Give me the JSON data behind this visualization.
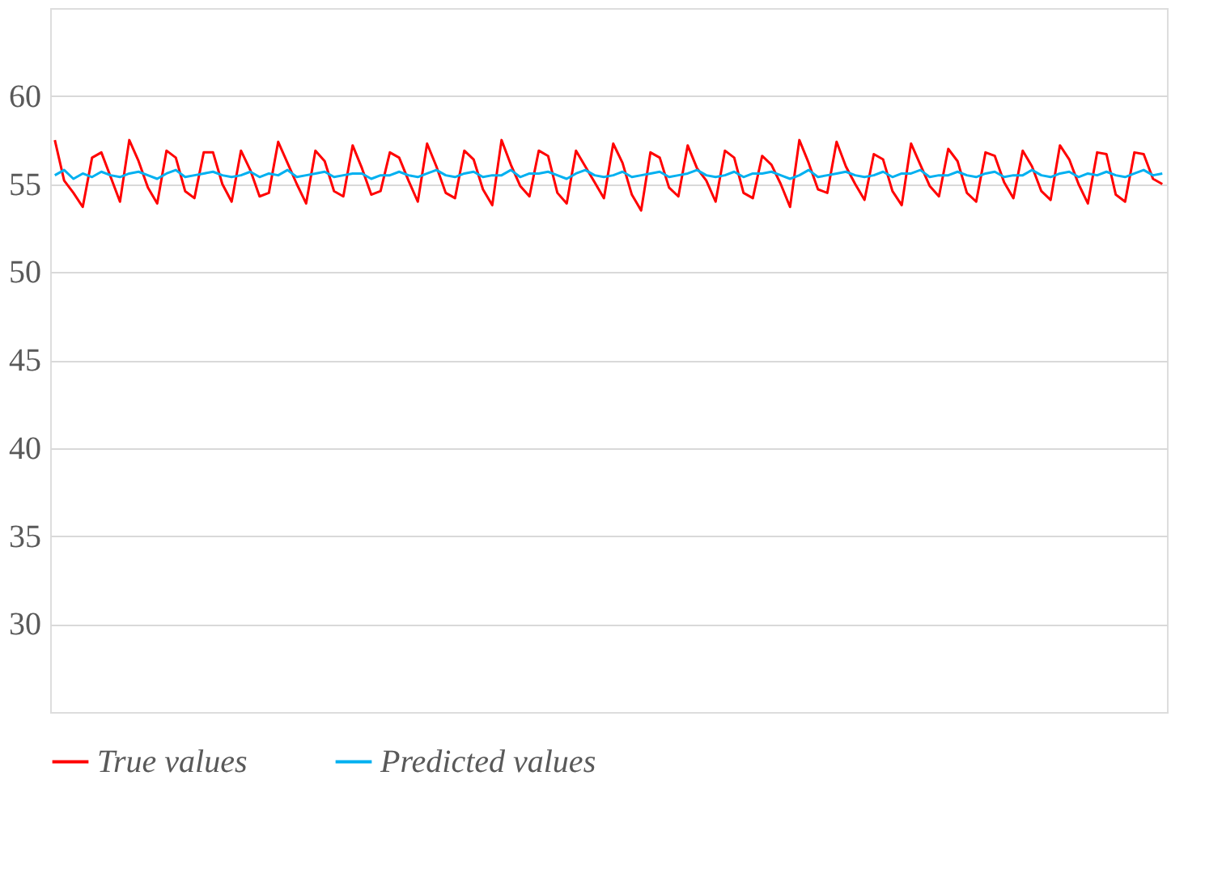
{
  "chart_data": {
    "type": "line",
    "categories": [
      null,
      null,
      null,
      null,
      null,
      null,
      null,
      null,
      null,
      null,
      null,
      null,
      null,
      null,
      null,
      null,
      null,
      null,
      null,
      null,
      null,
      null,
      null,
      null,
      null,
      null,
      null,
      null,
      null,
      null,
      null,
      null,
      null,
      null,
      null,
      null,
      null,
      null,
      null,
      null,
      null,
      null,
      null,
      null,
      null,
      null,
      null,
      null,
      null,
      null,
      null,
      null,
      null,
      null,
      null,
      null,
      null,
      null,
      null,
      null,
      null,
      null,
      null,
      null,
      null,
      null,
      null,
      null,
      null,
      null,
      null,
      null,
      null,
      null,
      null,
      null,
      null,
      null,
      null,
      null,
      null,
      null,
      null,
      null,
      null,
      null,
      null,
      null,
      null,
      null,
      null,
      null,
      null,
      null,
      null,
      null,
      null,
      null,
      null,
      null,
      null,
      null,
      null,
      null,
      null,
      null,
      null,
      null,
      null,
      null,
      null,
      null,
      null,
      null,
      null,
      null,
      null,
      null,
      null,
      null
    ],
    "series": [
      {
        "name": "True values",
        "color": "#ff0000",
        "values": [
          57.5,
          55.2,
          54.5,
          53.7,
          56.5,
          56.8,
          55.4,
          54.0,
          57.5,
          56.3,
          54.8,
          53.9,
          56.9,
          56.5,
          54.6,
          54.2,
          56.8,
          56.8,
          55.0,
          54.0,
          56.9,
          55.8,
          54.3,
          54.5,
          57.4,
          56.2,
          55.0,
          53.9,
          56.9,
          56.3,
          54.6,
          54.3,
          57.2,
          55.9,
          54.4,
          54.6,
          56.8,
          56.5,
          55.2,
          54.0,
          57.3,
          56.0,
          54.5,
          54.2,
          56.9,
          56.4,
          54.7,
          53.8,
          57.5,
          56.1,
          54.9,
          54.3,
          56.9,
          56.6,
          54.5,
          53.9,
          56.9,
          56.0,
          55.1,
          54.2,
          57.3,
          56.2,
          54.4,
          53.5,
          56.8,
          56.5,
          54.8,
          54.3,
          57.2,
          55.9,
          55.2,
          54.0,
          56.9,
          56.5,
          54.5,
          54.2,
          56.6,
          56.1,
          55.0,
          53.7,
          57.5,
          56.2,
          54.7,
          54.5,
          57.4,
          56.0,
          55.0,
          54.1,
          56.7,
          56.4,
          54.6,
          53.8,
          57.3,
          56.1,
          54.9,
          54.3,
          57.0,
          56.3,
          54.5,
          54.0,
          56.8,
          56.6,
          55.1,
          54.2,
          56.9,
          56.0,
          54.6,
          54.1,
          57.2,
          56.4,
          55.0,
          53.9,
          56.8,
          56.7,
          54.4,
          54.0,
          56.8,
          56.7,
          55.3,
          55.0
        ]
      },
      {
        "name": "Predicted values",
        "color": "#00b0f0",
        "values": [
          55.5,
          55.8,
          55.3,
          55.6,
          55.4,
          55.7,
          55.5,
          55.4,
          55.6,
          55.7,
          55.5,
          55.3,
          55.6,
          55.8,
          55.4,
          55.5,
          55.6,
          55.7,
          55.5,
          55.4,
          55.5,
          55.7,
          55.4,
          55.6,
          55.5,
          55.8,
          55.4,
          55.5,
          55.6,
          55.7,
          55.4,
          55.5,
          55.6,
          55.6,
          55.3,
          55.5,
          55.5,
          55.7,
          55.5,
          55.4,
          55.6,
          55.8,
          55.5,
          55.4,
          55.6,
          55.7,
          55.4,
          55.5,
          55.5,
          55.8,
          55.4,
          55.6,
          55.6,
          55.7,
          55.5,
          55.3,
          55.6,
          55.8,
          55.5,
          55.4,
          55.5,
          55.7,
          55.4,
          55.5,
          55.6,
          55.7,
          55.4,
          55.5,
          55.6,
          55.8,
          55.5,
          55.4,
          55.5,
          55.7,
          55.4,
          55.6,
          55.6,
          55.7,
          55.5,
          55.3,
          55.5,
          55.8,
          55.4,
          55.5,
          55.6,
          55.7,
          55.5,
          55.4,
          55.5,
          55.7,
          55.4,
          55.6,
          55.6,
          55.8,
          55.4,
          55.5,
          55.5,
          55.7,
          55.5,
          55.4,
          55.6,
          55.7,
          55.4,
          55.5,
          55.5,
          55.8,
          55.5,
          55.4,
          55.6,
          55.7,
          55.4,
          55.6,
          55.5,
          55.7,
          55.5,
          55.4,
          55.6,
          55.8,
          55.5,
          55.6
        ]
      }
    ],
    "ylim": [
      25,
      65
    ],
    "yticks": [
      30,
      35,
      40,
      45,
      50,
      55,
      60
    ],
    "grid": "y",
    "legend": "bottom",
    "marker": "none",
    "line_style": "solid"
  }
}
